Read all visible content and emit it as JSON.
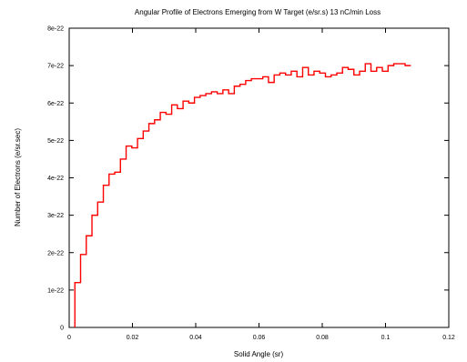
{
  "chart_data": {
    "type": "line",
    "title": "Angular Profile of Electrons Emerging from W Target (e/sr.s) 13 nC/min Loss",
    "xlabel": "Solid Angle (sr)",
    "ylabel": "Number of Electrons (e/sr.sec)",
    "xlim": [
      0,
      0.12
    ],
    "ylim": [
      0,
      8e-22
    ],
    "x_ticks": [
      0,
      0.02,
      0.04,
      0.06,
      0.08,
      0.1,
      0.12
    ],
    "x_tick_labels": [
      "0",
      "0.02",
      "0.04",
      "0.06",
      "0.08",
      "0.1",
      "0.12"
    ],
    "y_ticks": [
      0,
      1e-22,
      2e-22,
      3e-22,
      4e-22,
      5e-22,
      6e-22,
      7e-22,
      8e-22
    ],
    "y_tick_labels": [
      "0",
      "1e-22",
      "2e-22",
      "3e-22",
      "4e-22",
      "5e-22",
      "6e-22",
      "7e-22",
      "8e-22"
    ],
    "grid": false,
    "line_style": "step",
    "series_color": "#ff0000",
    "series": [
      {
        "x": [
          0.0018,
          0.0036,
          0.0054,
          0.0072,
          0.009,
          0.0108,
          0.0126,
          0.0144,
          0.0162,
          0.018,
          0.0198,
          0.0216,
          0.0234,
          0.0252,
          0.027,
          0.0288,
          0.0306,
          0.0324,
          0.0342,
          0.036,
          0.0378,
          0.0396,
          0.0414,
          0.0432,
          0.045,
          0.0468,
          0.0486,
          0.0504,
          0.0522,
          0.054,
          0.0558,
          0.0576,
          0.0594,
          0.0612,
          0.063,
          0.0648,
          0.0666,
          0.0684,
          0.0702,
          0.072,
          0.0738,
          0.0756,
          0.0774,
          0.0792,
          0.081,
          0.0828,
          0.0846,
          0.0864,
          0.0882,
          0.09,
          0.0918,
          0.0936,
          0.0954,
          0.0972,
          0.099,
          0.1008,
          0.1026,
          0.1044,
          0.1062,
          0.108
        ],
        "y": [
          1.2e-22,
          1.95e-22,
          2.45e-22,
          3e-22,
          3.35e-22,
          3.8e-22,
          4.1e-22,
          4.15e-22,
          4.5e-22,
          4.85e-22,
          4.8e-22,
          5.05e-22,
          5.25e-22,
          5.45e-22,
          5.55e-22,
          5.75e-22,
          5.7e-22,
          5.95e-22,
          5.85e-22,
          6.05e-22,
          6e-22,
          6.15e-22,
          6.2e-22,
          6.25e-22,
          6.3e-22,
          6.25e-22,
          6.35e-22,
          6.25e-22,
          6.45e-22,
          6.5e-22,
          6.6e-22,
          6.65e-22,
          6.65e-22,
          6.7e-22,
          6.55e-22,
          6.75e-22,
          6.8e-22,
          6.75e-22,
          6.85e-22,
          6.7e-22,
          6.95e-22,
          6.75e-22,
          6.85e-22,
          6.8e-22,
          6.7e-22,
          6.75e-22,
          6.8e-22,
          6.95e-22,
          6.9e-22,
          6.75e-22,
          6.85e-22,
          7.05e-22,
          6.85e-22,
          6.95e-22,
          6.85e-22,
          7e-22,
          7.05e-22,
          7.05e-22,
          7e-22,
          7e-22
        ]
      }
    ]
  }
}
